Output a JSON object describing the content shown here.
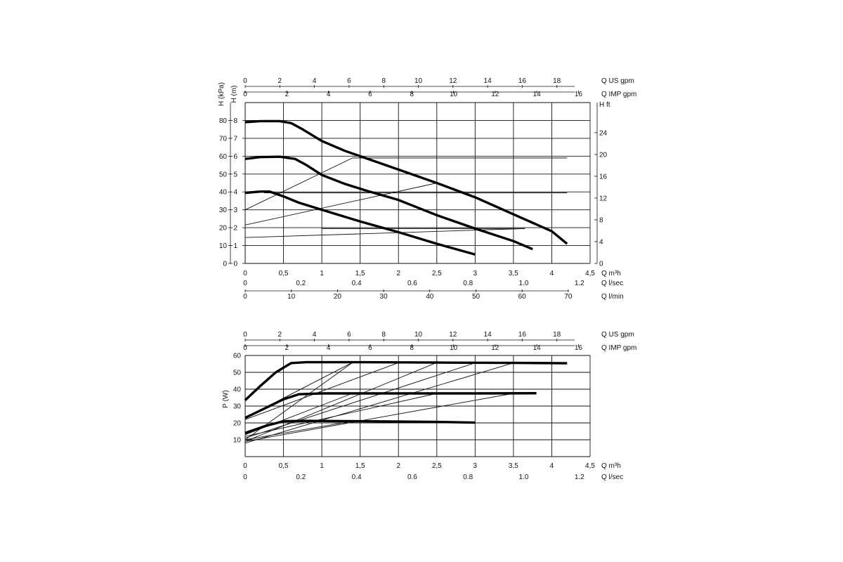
{
  "chart_data": [
    {
      "type": "line",
      "title": "",
      "x": {
        "label": "Q m³h",
        "range": [
          0,
          4.5
        ],
        "ticks": [
          "0",
          "0,5",
          "1",
          "1,5",
          "2",
          "2,5",
          "3",
          "3,5",
          "4",
          "4,5"
        ]
      },
      "x_secondary": [
        {
          "label": "Q US gpm",
          "position": "top",
          "ticks": [
            "0",
            "2",
            "4",
            "6",
            "8",
            "10",
            "12",
            "14",
            "16",
            "18"
          ]
        },
        {
          "label": "Q IMP gpm",
          "position": "top",
          "ticks": [
            "0",
            "2",
            "4",
            "6",
            "8",
            "10",
            "12",
            "14",
            "16"
          ]
        },
        {
          "label": "Q l/sec",
          "position": "bottom",
          "ticks": [
            "0",
            "0.2",
            "0.4",
            "0.6",
            "0.8",
            "1.0",
            "1.2"
          ]
        },
        {
          "label": "Q l/min",
          "position": "bottom",
          "ticks": [
            "0",
            "10",
            "20",
            "30",
            "40",
            "50",
            "60",
            "70"
          ]
        }
      ],
      "y": {
        "label": "H (m)",
        "range": [
          0,
          9
        ],
        "ticks": [
          "0",
          "1",
          "2",
          "3",
          "4",
          "5",
          "6",
          "7",
          "8"
        ]
      },
      "y_secondary": [
        {
          "label": "H (kPa)",
          "position": "left",
          "ticks": [
            "0",
            "10",
            "20",
            "30",
            "40",
            "50",
            "60",
            "70",
            "80"
          ]
        },
        {
          "label": "H ft",
          "position": "right",
          "ticks": [
            "0",
            "4",
            "8",
            "12",
            "16",
            "20",
            "24"
          ]
        }
      ],
      "grid": true,
      "series": [
        {
          "values": [
            [
              0,
              7.9
            ],
            [
              0.2,
              7.96
            ],
            [
              0.45,
              7.96
            ],
            [
              0.6,
              7.85
            ],
            [
              0.75,
              7.5
            ],
            [
              1,
              6.85
            ],
            [
              1.3,
              6.3
            ],
            [
              1.6,
              5.85
            ],
            [
              2,
              5.25
            ],
            [
              2.5,
              4.5
            ],
            [
              3,
              3.7
            ],
            [
              3.5,
              2.75
            ],
            [
              4,
              1.8
            ],
            [
              4.2,
              1.1
            ]
          ]
        },
        {
          "values": [
            [
              0,
              5.85
            ],
            [
              0.2,
              5.95
            ],
            [
              0.45,
              5.97
            ],
            [
              0.65,
              5.85
            ],
            [
              0.8,
              5.5
            ],
            [
              1,
              4.95
            ],
            [
              1.3,
              4.45
            ],
            [
              1.6,
              4.05
            ],
            [
              2,
              3.55
            ],
            [
              2.5,
              2.7
            ],
            [
              3,
              1.95
            ],
            [
              3.5,
              1.25
            ],
            [
              3.75,
              0.8
            ]
          ]
        },
        {
          "values": [
            [
              0,
              3.95
            ],
            [
              0.2,
              4.02
            ],
            [
              0.32,
              4.02
            ],
            [
              0.5,
              3.75
            ],
            [
              0.7,
              3.4
            ],
            [
              1,
              3.0
            ],
            [
              1.5,
              2.35
            ],
            [
              2,
              1.75
            ],
            [
              2.5,
              1.1
            ],
            [
              3,
              0.5
            ]
          ]
        }
      ],
      "reference_lines": [
        {
          "values": [
            [
              1.4,
              5.9
            ],
            [
              4.2,
              5.9
            ]
          ]
        },
        {
          "values": [
            [
              0.25,
              3.95
            ],
            [
              4.2,
              3.95
            ]
          ]
        },
        {
          "values": [
            [
              1.0,
              1.95
            ],
            [
              3.65,
              1.95
            ]
          ]
        },
        {
          "values": [
            [
              0,
              3.0
            ],
            [
              1.4,
              5.9
            ]
          ]
        },
        {
          "values": [
            [
              0,
              2.15
            ],
            [
              2.5,
              4.5
            ]
          ]
        },
        {
          "values": [
            [
              0,
              1.45
            ],
            [
              3.65,
              1.95
            ]
          ]
        }
      ]
    },
    {
      "type": "line",
      "title": "",
      "x": {
        "label": "Q m³h",
        "range": [
          0,
          4.5
        ],
        "ticks": [
          "0",
          "0,5",
          "1",
          "1,5",
          "2",
          "2,5",
          "3",
          "3,5",
          "4",
          "4,5"
        ]
      },
      "x_secondary": [
        {
          "label": "Q US gpm",
          "position": "top",
          "ticks": [
            "0",
            "2",
            "4",
            "6",
            "8",
            "10",
            "12",
            "14",
            "16",
            "18"
          ]
        },
        {
          "label": "Q IMP gpm",
          "position": "top",
          "ticks": [
            "0",
            "2",
            "4",
            "6",
            "8",
            "10",
            "12",
            "14",
            "16"
          ]
        },
        {
          "label": "Q l/sec",
          "position": "bottom",
          "ticks": [
            "0",
            "0.2",
            "0.4",
            "0.6",
            "0.8",
            "1.0",
            "1.2"
          ]
        }
      ],
      "y": {
        "label": "P (W)",
        "range": [
          0,
          60
        ],
        "ticks": [
          "10",
          "20",
          "30",
          "40",
          "50",
          "60"
        ]
      },
      "grid": true,
      "series": [
        {
          "values": [
            [
              0,
              33.5
            ],
            [
              0.2,
              42
            ],
            [
              0.4,
              50
            ],
            [
              0.6,
              55.5
            ],
            [
              0.8,
              56
            ],
            [
              1.5,
              56
            ],
            [
              2.5,
              55.8
            ],
            [
              3.5,
              55.6
            ],
            [
              4.2,
              55.4
            ]
          ]
        },
        {
          "values": [
            [
              0,
              23
            ],
            [
              0.25,
              28.5
            ],
            [
              0.5,
              34
            ],
            [
              0.7,
              37
            ],
            [
              1,
              37.5
            ],
            [
              2,
              37.5
            ],
            [
              3,
              37.5
            ],
            [
              3.8,
              37.6
            ]
          ]
        },
        {
          "values": [
            [
              0,
              14
            ],
            [
              0.25,
              18
            ],
            [
              0.5,
              21
            ],
            [
              0.8,
              21.2
            ],
            [
              1.5,
              21
            ],
            [
              2.5,
              20.6
            ],
            [
              3,
              20.2
            ]
          ]
        }
      ],
      "reference_lines": [
        {
          "values": [
            [
              0,
              10
            ],
            [
              1.4,
              55.8
            ]
          ]
        },
        {
          "values": [
            [
              0,
              9
            ],
            [
              2.5,
              55.8
            ]
          ]
        },
        {
          "values": [
            [
              0,
              8
            ],
            [
              3.5,
              55.6
            ]
          ]
        },
        {
          "values": [
            [
              0,
              23
            ],
            [
              1.4,
              55.8
            ]
          ]
        },
        {
          "values": [
            [
              0,
              22
            ],
            [
              2.0,
              55.7
            ]
          ]
        },
        {
          "values": [
            [
              0,
              13
            ],
            [
              1.4,
              37.5
            ]
          ]
        },
        {
          "values": [
            [
              0,
              12
            ],
            [
              2.5,
              37.5
            ]
          ]
        },
        {
          "values": [
            [
              0,
              11
            ],
            [
              3.0,
              55.6
            ]
          ]
        },
        {
          "values": [
            [
              0,
              10
            ],
            [
              1.4,
              21
            ]
          ]
        },
        {
          "values": [
            [
              0,
              9
            ],
            [
              3.5,
              37.5
            ]
          ]
        }
      ]
    }
  ]
}
